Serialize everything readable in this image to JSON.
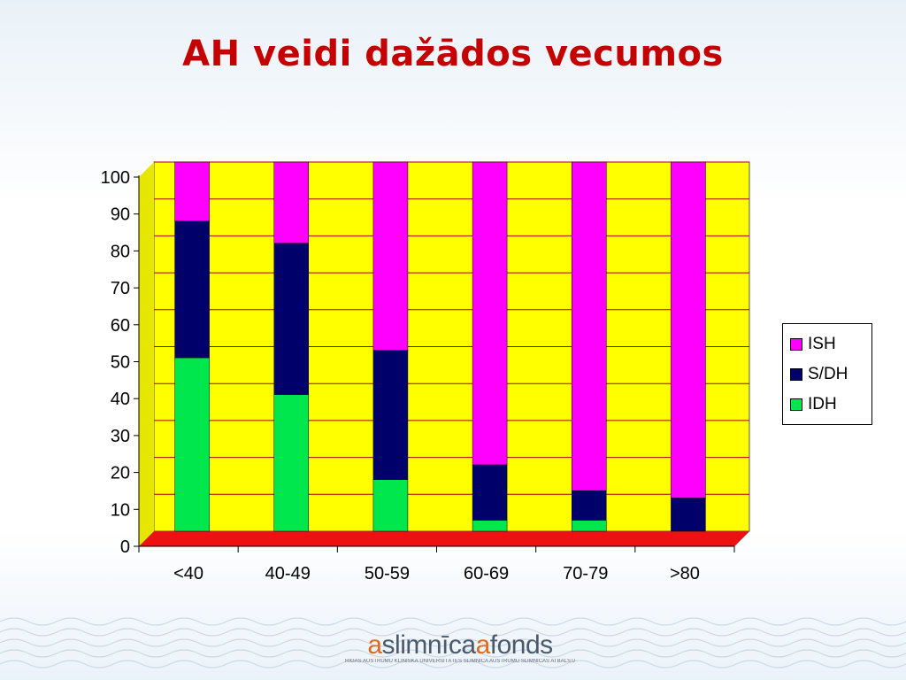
{
  "slide": {
    "title": "AH veidi dažādos vecumos"
  },
  "colors": {
    "ISH": "#ff00ff",
    "S/DH": "#00006b",
    "IDH": "#00e64d",
    "back_wall": "#ffff00",
    "floor": "#ee1111",
    "gridline": "#a80000"
  },
  "chart_data": {
    "type": "bar",
    "stacked": true,
    "categories": [
      "<40",
      "40-49",
      "50-59",
      "60-69",
      "70-79",
      ">80"
    ],
    "series": [
      {
        "name": "IDH",
        "values": [
          47,
          37,
          14,
          3,
          3,
          0
        ]
      },
      {
        "name": "S/DH",
        "values": [
          37,
          41,
          35,
          15,
          8,
          9
        ]
      },
      {
        "name": "ISH",
        "values": [
          16,
          22,
          51,
          82,
          89,
          91
        ]
      }
    ],
    "ylim": [
      0,
      100
    ],
    "yticks": [
      0,
      10,
      20,
      30,
      40,
      50,
      60,
      70,
      80,
      90,
      100
    ],
    "grid": true,
    "legend_position": "right",
    "xlabel": "",
    "ylabel": ""
  },
  "legend": {
    "items": [
      "ISH",
      "S/DH",
      "IDH"
    ]
  },
  "footer": {
    "logo_a1": "a",
    "logo_word1": "slimnīca",
    "logo_a2": "a",
    "logo_word2": "fonds",
    "logo_subtext": "RĪGAS AUSTRUMU KLĪNISKĀ UNIVERSITĀTES SLIMNĪCA   AUSTRUMU SLIMNĪCAS ATBALSTA FONDS"
  }
}
